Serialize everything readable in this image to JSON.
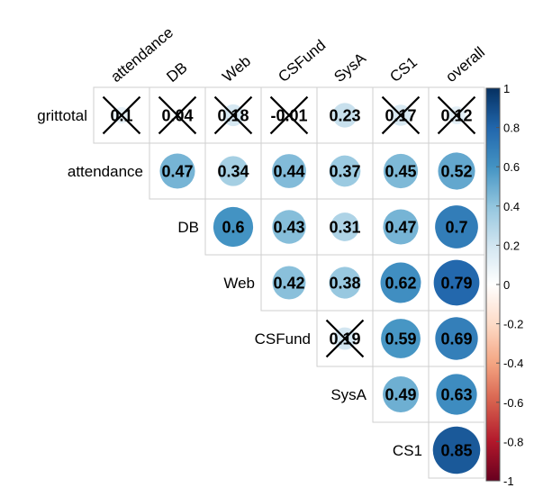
{
  "chart_data": {
    "type": "heatmap",
    "variables": [
      "grittotal",
      "attendance",
      "DB",
      "Web",
      "CSFund",
      "SysA",
      "CS1",
      "overall"
    ],
    "column_labels": [
      "attendance",
      "DB",
      "Web",
      "CSFund",
      "SysA",
      "CS1",
      "overall"
    ],
    "row_labels": [
      "grittotal",
      "attendance",
      "DB",
      "Web",
      "CSFund",
      "SysA",
      "CS1"
    ],
    "cells": [
      {
        "row": "grittotal",
        "col": "attendance",
        "value": 0.1,
        "label": "0.1",
        "crossed": true
      },
      {
        "row": "grittotal",
        "col": "DB",
        "value": 0.04,
        "label": "0.04",
        "crossed": true
      },
      {
        "row": "grittotal",
        "col": "Web",
        "value": 0.18,
        "label": "0.18",
        "crossed": true
      },
      {
        "row": "grittotal",
        "col": "CSFund",
        "value": -0.01,
        "label": "-0.01",
        "crossed": true
      },
      {
        "row": "grittotal",
        "col": "SysA",
        "value": 0.23,
        "label": "0.23",
        "crossed": false
      },
      {
        "row": "grittotal",
        "col": "CS1",
        "value": 0.17,
        "label": "0.17",
        "crossed": true
      },
      {
        "row": "grittotal",
        "col": "overall",
        "value": 0.12,
        "label": "0.12",
        "crossed": true
      },
      {
        "row": "attendance",
        "col": "DB",
        "value": 0.47,
        "label": "0.47",
        "crossed": false
      },
      {
        "row": "attendance",
        "col": "Web",
        "value": 0.34,
        "label": "0.34",
        "crossed": false
      },
      {
        "row": "attendance",
        "col": "CSFund",
        "value": 0.44,
        "label": "0.44",
        "crossed": false
      },
      {
        "row": "attendance",
        "col": "SysA",
        "value": 0.37,
        "label": "0.37",
        "crossed": false
      },
      {
        "row": "attendance",
        "col": "CS1",
        "value": 0.45,
        "label": "0.45",
        "crossed": false
      },
      {
        "row": "attendance",
        "col": "overall",
        "value": 0.52,
        "label": "0.52",
        "crossed": false
      },
      {
        "row": "DB",
        "col": "Web",
        "value": 0.6,
        "label": "0.6",
        "crossed": false
      },
      {
        "row": "DB",
        "col": "CSFund",
        "value": 0.43,
        "label": "0.43",
        "crossed": false
      },
      {
        "row": "DB",
        "col": "SysA",
        "value": 0.31,
        "label": "0.31",
        "crossed": false
      },
      {
        "row": "DB",
        "col": "CS1",
        "value": 0.47,
        "label": "0.47",
        "crossed": false
      },
      {
        "row": "DB",
        "col": "overall",
        "value": 0.7,
        "label": "0.7",
        "crossed": false
      },
      {
        "row": "Web",
        "col": "CSFund",
        "value": 0.42,
        "label": "0.42",
        "crossed": false
      },
      {
        "row": "Web",
        "col": "SysA",
        "value": 0.38,
        "label": "0.38",
        "crossed": false
      },
      {
        "row": "Web",
        "col": "CS1",
        "value": 0.62,
        "label": "0.62",
        "crossed": false
      },
      {
        "row": "Web",
        "col": "overall",
        "value": 0.79,
        "label": "0.79",
        "crossed": false
      },
      {
        "row": "CSFund",
        "col": "SysA",
        "value": 0.19,
        "label": "0.19",
        "crossed": true
      },
      {
        "row": "CSFund",
        "col": "CS1",
        "value": 0.59,
        "label": "0.59",
        "crossed": false
      },
      {
        "row": "CSFund",
        "col": "overall",
        "value": 0.69,
        "label": "0.69",
        "crossed": false
      },
      {
        "row": "SysA",
        "col": "CS1",
        "value": 0.49,
        "label": "0.49",
        "crossed": false
      },
      {
        "row": "SysA",
        "col": "overall",
        "value": 0.63,
        "label": "0.63",
        "crossed": false
      },
      {
        "row": "CS1",
        "col": "overall",
        "value": 0.85,
        "label": "0.85",
        "crossed": false
      }
    ],
    "colorbar": {
      "range": [
        -1,
        1
      ],
      "tick_labels": [
        "1",
        "0.8",
        "0.6",
        "0.4",
        "0.2",
        "0",
        "-0.2",
        "-0.4",
        "-0.6",
        "-0.8",
        "-1"
      ],
      "tick_values": [
        1,
        0.8,
        0.6,
        0.4,
        0.2,
        0,
        -0.2,
        -0.4,
        -0.6,
        -0.8,
        -1
      ],
      "palette": [
        "#67001F",
        "#B2182B",
        "#D6604D",
        "#F4A582",
        "#FDDBC7",
        "#FFFFFF",
        "#D1E5F0",
        "#92C5DE",
        "#4393C3",
        "#2166AC",
        "#053061"
      ]
    },
    "layout_style": "upper-triangle",
    "grid": true,
    "legend_position": "right"
  }
}
